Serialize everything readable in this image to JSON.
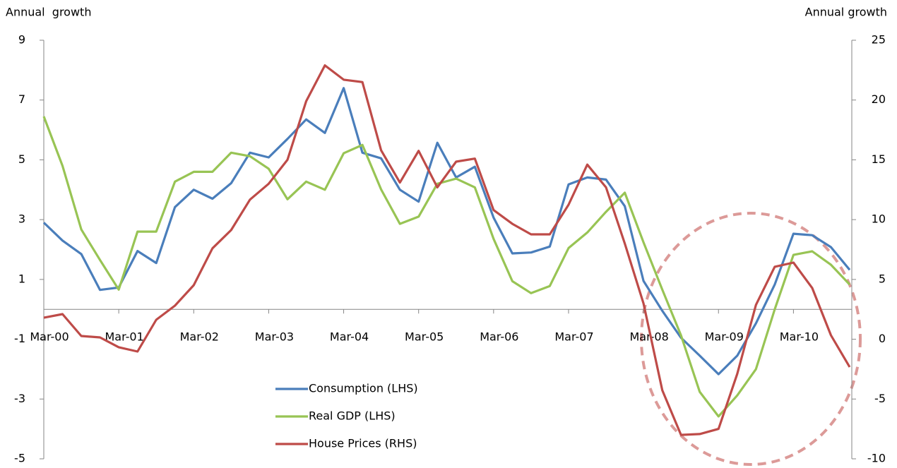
{
  "chart_data": {
    "type": "line",
    "y_label": "Annual  growth",
    "y2_label": "Annual growth",
    "categories": [
      "Mar-00",
      null,
      null,
      null,
      "Mar-01",
      null,
      null,
      null,
      "Mar-02",
      null,
      null,
      null,
      "Mar-03",
      null,
      null,
      null,
      "Mar-04",
      null,
      null,
      null,
      "Mar-05",
      null,
      null,
      null,
      "Mar-06",
      null,
      null,
      null,
      "Mar-07",
      null,
      null,
      null,
      "Mar-08",
      null,
      null,
      null,
      "Mar-09",
      null,
      null,
      null,
      "Mar-10",
      null,
      null,
      null
    ],
    "series": [
      {
        "name": "Consumption (LHS)",
        "color": "#4a7ebb",
        "axis": "y",
        "values": [
          2.9,
          2.3,
          1.85,
          0.65,
          0.73,
          1.95,
          1.55,
          3.42,
          4.0,
          3.7,
          4.22,
          5.24,
          5.08,
          5.7,
          6.35,
          5.9,
          7.4,
          5.24,
          5.05,
          4.0,
          3.6,
          5.57,
          4.41,
          4.77,
          3.07,
          1.87,
          1.9,
          2.1,
          4.18,
          4.41,
          4.34,
          3.45,
          0.95,
          -0.05,
          -0.95,
          -1.55,
          -2.17,
          -1.55,
          -0.47,
          0.83,
          2.53,
          2.48,
          2.08,
          1.32
        ]
      },
      {
        "name": "Real GDP (LHS)",
        "color": "#98c454",
        "axis": "y",
        "values": [
          6.45,
          4.8,
          2.67,
          1.65,
          0.66,
          2.6,
          2.6,
          4.27,
          4.6,
          4.6,
          5.24,
          5.12,
          4.7,
          3.68,
          4.27,
          4.0,
          5.22,
          5.5,
          4.01,
          2.86,
          3.1,
          4.2,
          4.37,
          4.08,
          2.36,
          0.94,
          0.54,
          0.78,
          2.05,
          2.57,
          3.26,
          3.9,
          2.24,
          0.66,
          -0.87,
          -2.76,
          -3.58,
          -2.88,
          -2.0,
          0,
          1.82,
          1.94,
          1.49,
          0.83
        ]
      },
      {
        "name": "House Prices (RHS)",
        "color": "#be4b48",
        "axis": "y2",
        "values": [
          1.8,
          2.1,
          0.27,
          0.15,
          -0.67,
          -1.03,
          1.63,
          2.81,
          4.52,
          7.6,
          9.13,
          11.67,
          13.0,
          15.0,
          19.9,
          22.9,
          21.7,
          21.5,
          15.8,
          13.1,
          15.75,
          12.7,
          14.85,
          15.1,
          10.8,
          9.65,
          8.77,
          8.77,
          11.25,
          14.6,
          12.7,
          8.0,
          2.99,
          -4.27,
          -8.0,
          -7.93,
          -7.5,
          -2.9,
          2.87,
          6.06,
          6.41,
          4.29,
          0.33,
          -2.33
        ]
      }
    ],
    "ylim": [
      -5,
      9
    ],
    "yticks": [
      -5,
      -3,
      -1,
      1,
      3,
      5,
      7,
      9
    ],
    "y2lim": [
      -10,
      25
    ],
    "y2ticks": [
      -10,
      -5,
      0,
      5,
      10,
      15,
      20,
      25
    ],
    "grid": false
  }
}
